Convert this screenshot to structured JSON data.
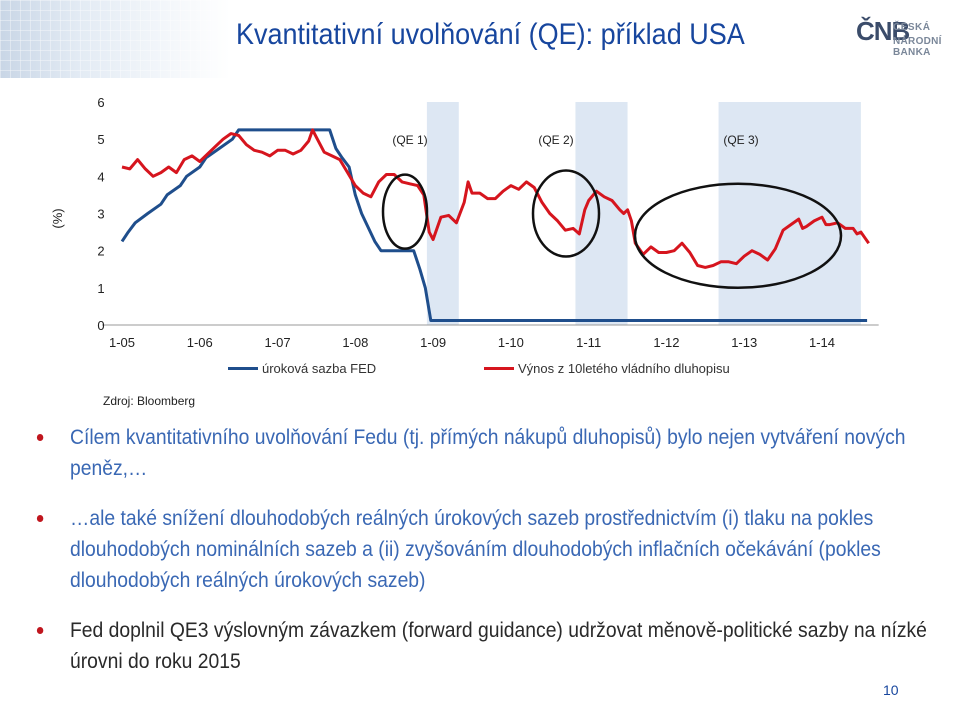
{
  "slide": {
    "title": "Kvantitativní uvolňování (QE): příklad USA",
    "logo": {
      "mark": "ČNB",
      "line1": "ČESKÁ",
      "line2": "NÁRODNÍ BANKA"
    },
    "source": "Zdroj: Bloomberg",
    "bullets": [
      "Cílem kvantitativního uvolňování Fedu (tj. přímých nákupů dluhopisů) bylo nejen vytváření nových peněz,…",
      "…ale také snížení dlouhodobých reálných úrokových sazeb prostřednictvím (i) tlaku na pokles dlouhodobých nominálních sazeb a (ii) zvyšováním dlouhodobých inflačních očekávání (pokles dlouhodobých reálných úrokových sazeb)",
      "Fed doplnil QE3 výslovným závazkem (forward guidance) udržovat měnově-politické sazby na nízké úrovni do roku 2015"
    ],
    "page_number": "10",
    "colors": {
      "title": "#17469e",
      "bullet": "#c0161e",
      "blue_text": "#3a68b4"
    }
  },
  "chart_data": {
    "type": "line",
    "ylabel": "(%)",
    "ylim": [
      0,
      6
    ],
    "yticks": [
      "0",
      "1",
      "2",
      "3",
      "4",
      "5",
      "6"
    ],
    "xticks": [
      "1-05",
      "1-06",
      "1-07",
      "1-08",
      "1-09",
      "1-10",
      "1-11",
      "1-12",
      "1-13",
      "1-14"
    ],
    "shaded_periods": [
      {
        "label": "(QE 1)",
        "start": 2008.92,
        "end": 2009.33,
        "color": "#dde7f3"
      },
      {
        "label": "(QE 2)",
        "start": 2010.83,
        "end": 2011.5,
        "color": "#dde7f3"
      },
      {
        "label": "(QE 3)",
        "start": 2012.67,
        "end": 2014.5,
        "color": "#dde7f3"
      }
    ],
    "series": [
      {
        "name": "úroková sazba FED",
        "color": "#1f4e8c",
        "points": [
          [
            2005.0,
            2.25
          ],
          [
            2005.08,
            2.5
          ],
          [
            2005.17,
            2.75
          ],
          [
            2005.33,
            3.0
          ],
          [
            2005.5,
            3.25
          ],
          [
            2005.58,
            3.5
          ],
          [
            2005.75,
            3.75
          ],
          [
            2005.83,
            4.0
          ],
          [
            2006.0,
            4.25
          ],
          [
            2006.08,
            4.5
          ],
          [
            2006.25,
            4.75
          ],
          [
            2006.42,
            5.0
          ],
          [
            2006.5,
            5.25
          ],
          [
            2007.67,
            5.25
          ],
          [
            2007.75,
            4.75
          ],
          [
            2007.83,
            4.5
          ],
          [
            2007.92,
            4.25
          ],
          [
            2008.0,
            3.5
          ],
          [
            2008.08,
            3.0
          ],
          [
            2008.25,
            2.25
          ],
          [
            2008.33,
            2.0
          ],
          [
            2008.75,
            2.0
          ],
          [
            2008.83,
            1.5
          ],
          [
            2008.9,
            1.0
          ],
          [
            2008.97,
            0.12
          ],
          [
            2014.58,
            0.12
          ]
        ]
      },
      {
        "name": "Výnos z 10letého vládního dluhopisu",
        "color": "#d6151e",
        "points": [
          [
            2005.0,
            4.25
          ],
          [
            2005.1,
            4.2
          ],
          [
            2005.2,
            4.45
          ],
          [
            2005.3,
            4.2
          ],
          [
            2005.4,
            4.0
          ],
          [
            2005.5,
            4.1
          ],
          [
            2005.6,
            4.25
          ],
          [
            2005.7,
            4.1
          ],
          [
            2005.8,
            4.45
          ],
          [
            2005.9,
            4.55
          ],
          [
            2006.0,
            4.4
          ],
          [
            2006.1,
            4.6
          ],
          [
            2006.2,
            4.8
          ],
          [
            2006.3,
            5.0
          ],
          [
            2006.4,
            5.15
          ],
          [
            2006.5,
            5.1
          ],
          [
            2006.6,
            4.85
          ],
          [
            2006.7,
            4.7
          ],
          [
            2006.8,
            4.65
          ],
          [
            2006.9,
            4.55
          ],
          [
            2007.0,
            4.7
          ],
          [
            2007.1,
            4.7
          ],
          [
            2007.2,
            4.6
          ],
          [
            2007.3,
            4.7
          ],
          [
            2007.4,
            4.95
          ],
          [
            2007.45,
            5.25
          ],
          [
            2007.5,
            5.05
          ],
          [
            2007.6,
            4.65
          ],
          [
            2007.7,
            4.55
          ],
          [
            2007.8,
            4.45
          ],
          [
            2007.9,
            4.1
          ],
          [
            2008.0,
            3.75
          ],
          [
            2008.1,
            3.55
          ],
          [
            2008.2,
            3.45
          ],
          [
            2008.3,
            3.85
          ],
          [
            2008.4,
            4.05
          ],
          [
            2008.5,
            4.05
          ],
          [
            2008.6,
            3.85
          ],
          [
            2008.7,
            3.8
          ],
          [
            2008.8,
            3.75
          ],
          [
            2008.88,
            3.5
          ],
          [
            2008.95,
            2.5
          ],
          [
            2009.0,
            2.3
          ],
          [
            2009.1,
            2.9
          ],
          [
            2009.2,
            2.95
          ],
          [
            2009.3,
            2.75
          ],
          [
            2009.4,
            3.3
          ],
          [
            2009.45,
            3.85
          ],
          [
            2009.5,
            3.55
          ],
          [
            2009.6,
            3.55
          ],
          [
            2009.7,
            3.4
          ],
          [
            2009.8,
            3.4
          ],
          [
            2009.9,
            3.6
          ],
          [
            2010.0,
            3.75
          ],
          [
            2010.1,
            3.65
          ],
          [
            2010.2,
            3.85
          ],
          [
            2010.3,
            3.7
          ],
          [
            2010.4,
            3.3
          ],
          [
            2010.5,
            3.0
          ],
          [
            2010.6,
            2.8
          ],
          [
            2010.7,
            2.55
          ],
          [
            2010.8,
            2.6
          ],
          [
            2010.88,
            2.45
          ],
          [
            2010.95,
            3.1
          ],
          [
            2011.0,
            3.35
          ],
          [
            2011.1,
            3.6
          ],
          [
            2011.2,
            3.45
          ],
          [
            2011.3,
            3.35
          ],
          [
            2011.4,
            3.1
          ],
          [
            2011.45,
            3.0
          ],
          [
            2011.5,
            3.1
          ],
          [
            2011.55,
            2.8
          ],
          [
            2011.6,
            2.2
          ],
          [
            2011.7,
            1.9
          ],
          [
            2011.8,
            2.1
          ],
          [
            2011.9,
            1.95
          ],
          [
            2012.0,
            1.95
          ],
          [
            2012.1,
            2.0
          ],
          [
            2012.2,
            2.2
          ],
          [
            2012.3,
            1.95
          ],
          [
            2012.4,
            1.6
          ],
          [
            2012.5,
            1.55
          ],
          [
            2012.6,
            1.6
          ],
          [
            2012.7,
            1.7
          ],
          [
            2012.8,
            1.7
          ],
          [
            2012.9,
            1.65
          ],
          [
            2013.0,
            1.85
          ],
          [
            2013.1,
            2.0
          ],
          [
            2013.2,
            1.9
          ],
          [
            2013.3,
            1.75
          ],
          [
            2013.4,
            2.05
          ],
          [
            2013.5,
            2.55
          ],
          [
            2013.6,
            2.7
          ],
          [
            2013.7,
            2.85
          ],
          [
            2013.75,
            2.6
          ],
          [
            2013.8,
            2.65
          ],
          [
            2013.9,
            2.8
          ],
          [
            2014.0,
            2.9
          ],
          [
            2014.05,
            2.7
          ],
          [
            2014.1,
            2.7
          ],
          [
            2014.2,
            2.75
          ],
          [
            2014.3,
            2.6
          ],
          [
            2014.4,
            2.6
          ],
          [
            2014.45,
            2.45
          ],
          [
            2014.5,
            2.5
          ],
          [
            2014.55,
            2.35
          ],
          [
            2014.6,
            2.2
          ]
        ]
      }
    ],
    "legend_position": "bottom",
    "grid": false
  }
}
